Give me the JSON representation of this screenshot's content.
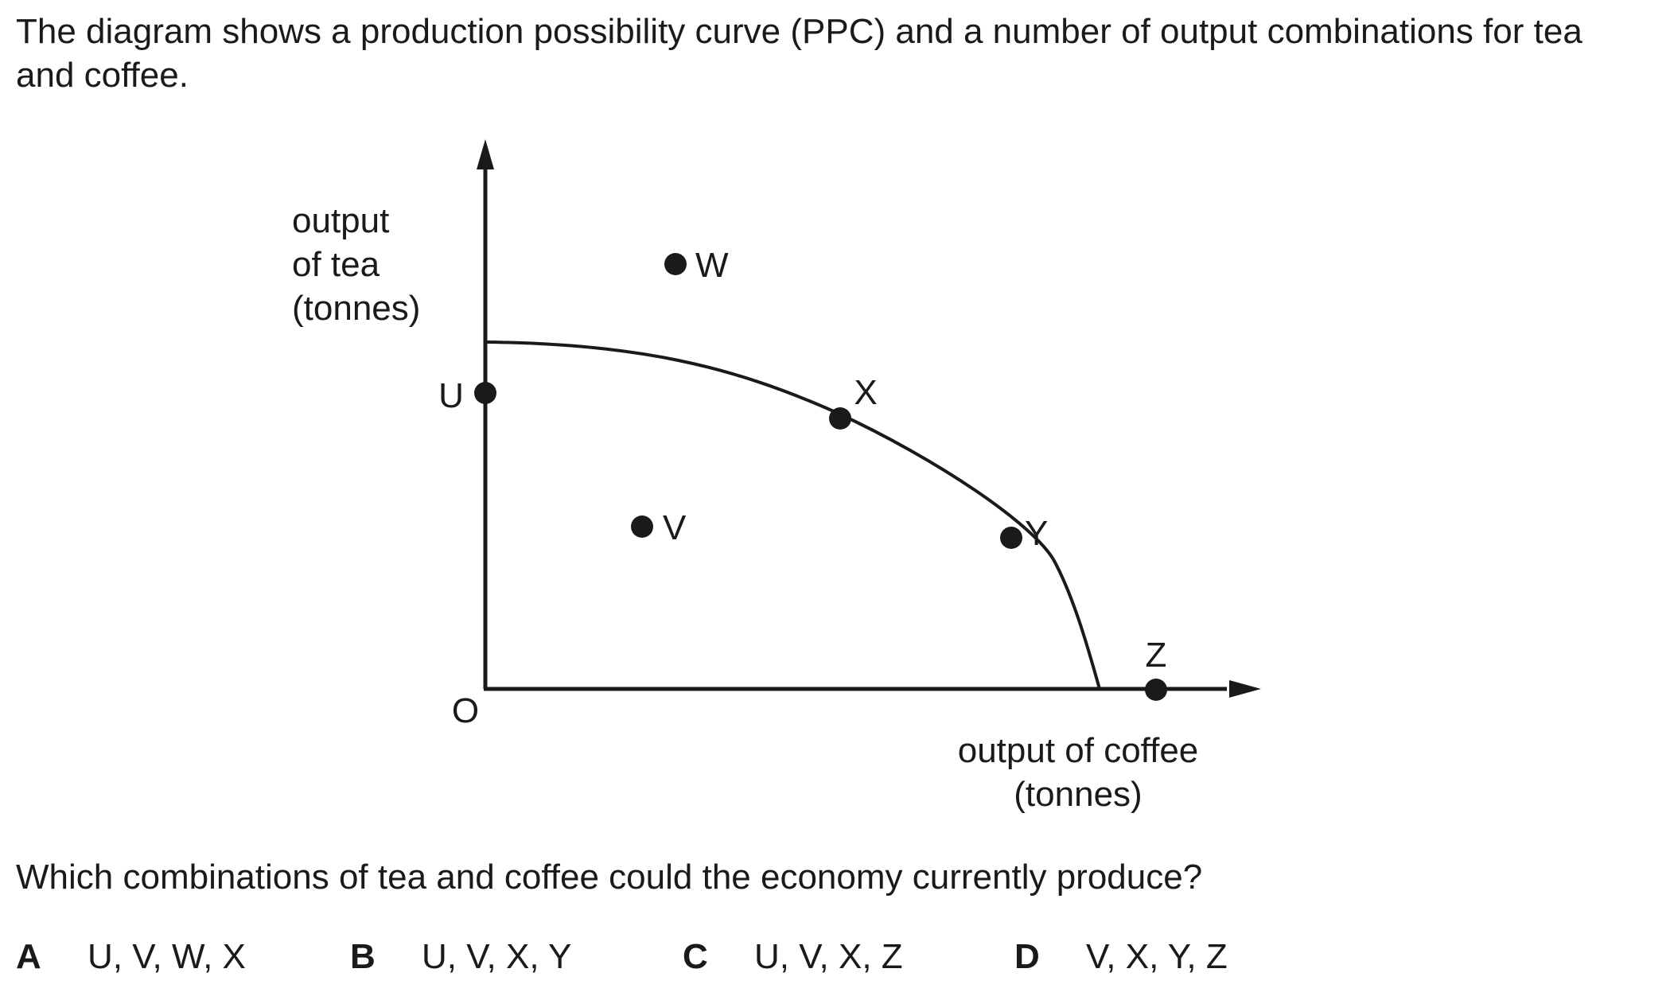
{
  "intro_text": "The diagram shows a production possibility curve (PPC) and a number of output combinations for tea and coffee.",
  "diagram": {
    "y_axis_label": [
      "output",
      "of tea",
      "(tonnes)"
    ],
    "x_axis_label": [
      "output of coffee",
      "(tonnes)"
    ],
    "origin_label": "O",
    "points": [
      {
        "label": "U"
      },
      {
        "label": "V"
      },
      {
        "label": "W"
      },
      {
        "label": "X"
      },
      {
        "label": "Y"
      },
      {
        "label": "Z"
      }
    ],
    "line_color": "#1a1a1a"
  },
  "question": "Which combinations of tea and coffee could the economy currently produce?",
  "options": [
    {
      "letter": "A",
      "text": "U, V, W, X"
    },
    {
      "letter": "B",
      "text": "U, V, X, Y"
    },
    {
      "letter": "C",
      "text": "U, V, X, Z"
    },
    {
      "letter": "D",
      "text": "V, X, Y, Z"
    }
  ]
}
